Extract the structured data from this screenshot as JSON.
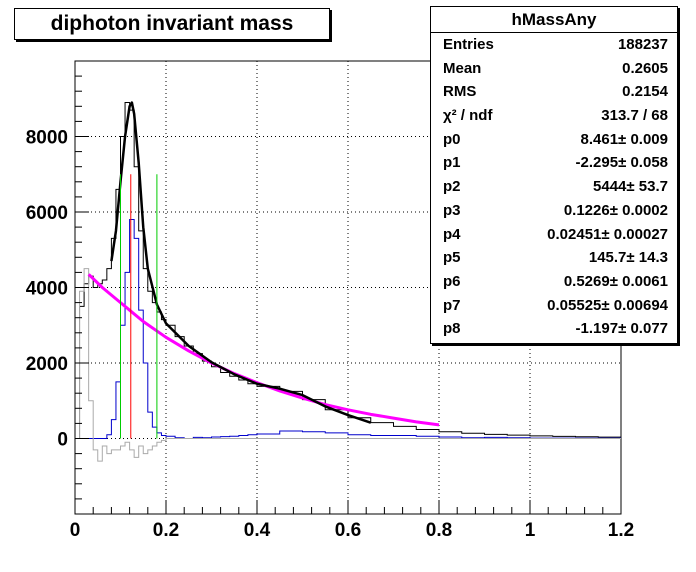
{
  "title": "diphoton invariant mass",
  "stats": {
    "name": "hMassAny",
    "rows": [
      {
        "label": "Entries",
        "value": "188237"
      },
      {
        "label": "Mean",
        "value": "0.2605"
      },
      {
        "label": "RMS",
        "value": "0.2154"
      },
      {
        "label": "χ² / ndf",
        "value": "313.7 / 68"
      },
      {
        "label": "p0",
        "value": "8.461± 0.009"
      },
      {
        "label": "p1",
        "value": "-2.295± 0.058"
      },
      {
        "label": "p2",
        "value": "5444± 53.7"
      },
      {
        "label": "p3",
        "value": "0.1226± 0.0002"
      },
      {
        "label": "p4",
        "value": "0.02451± 0.00027"
      },
      {
        "label": "p5",
        "value": "145.7± 14.3"
      },
      {
        "label": "p6",
        "value": "0.5269± 0.0061"
      },
      {
        "label": "p7",
        "value": "0.05525± 0.00694"
      },
      {
        "label": "p8",
        "value": "-1.197± 0.077"
      }
    ]
  },
  "chart_data": {
    "type": "histogram",
    "xlim": [
      0,
      1.2
    ],
    "ylim": [
      -2000,
      10000
    ],
    "xticks": [
      "0",
      "0.2",
      "0.4",
      "0.6",
      "0.8",
      "1",
      "1.2"
    ],
    "yticks": [
      "0",
      "2000",
      "4000",
      "6000",
      "8000"
    ],
    "grid": true,
    "x": [
      0.0,
      0.01,
      0.02,
      0.03,
      0.04,
      0.05,
      0.06,
      0.07,
      0.08,
      0.09,
      0.1,
      0.11,
      0.12,
      0.13,
      0.14,
      0.15,
      0.16,
      0.17,
      0.18,
      0.19,
      0.2,
      0.22,
      0.24,
      0.26,
      0.28,
      0.3,
      0.32,
      0.34,
      0.36,
      0.38,
      0.4,
      0.45,
      0.5,
      0.55,
      0.6,
      0.65,
      0.7,
      0.75,
      0.8,
      0.85,
      0.9,
      0.95,
      1.0,
      1.05,
      1.1,
      1.15,
      1.2
    ],
    "series": [
      {
        "color": "#000000",
        "style": "hist",
        "values": [
          0,
          3500,
          4100,
          4300,
          4000,
          4100,
          4200,
          4500,
          5300,
          6600,
          8000,
          8900,
          8700,
          7200,
          5500,
          4500,
          3900,
          3600,
          3350,
          3150,
          3000,
          2700,
          2450,
          2250,
          2050,
          1900,
          1750,
          1650,
          1550,
          1450,
          1380,
          1250,
          1030,
          760,
          550,
          420,
          320,
          240,
          180,
          140,
          110,
          90,
          70,
          55,
          45,
          35,
          25
        ]
      },
      {
        "color": "#0000cc",
        "style": "hist",
        "values": [
          0,
          0,
          0,
          0,
          0,
          0,
          0,
          100,
          500,
          1500,
          3000,
          4400,
          5800,
          5300,
          3400,
          2000,
          700,
          300,
          150,
          80,
          60,
          20,
          0,
          30,
          20,
          40,
          50,
          60,
          80,
          100,
          120,
          200,
          180,
          150,
          100,
          80,
          80,
          60,
          40,
          20,
          30,
          20,
          10,
          10,
          10,
          10,
          10
        ]
      },
      {
        "color": "#aaaaaa",
        "style": "hist",
        "values": [
          0,
          3900,
          4500,
          1000,
          -300,
          -600,
          -200,
          -400,
          -300,
          -300,
          -200,
          -100,
          -300,
          -500,
          -200,
          -400,
          -300,
          -200,
          -100,
          -50,
          0,
          0,
          0,
          0,
          0,
          0,
          0,
          0,
          0,
          0,
          0,
          0,
          0,
          0,
          0,
          0,
          0,
          0,
          0,
          0,
          0,
          0,
          0,
          0,
          0,
          0,
          0
        ]
      },
      {
        "color": "#ff00ff",
        "style": "fit",
        "x": [
          0.03,
          0.06,
          0.1,
          0.15,
          0.2,
          0.25,
          0.3,
          0.35,
          0.4,
          0.45,
          0.5,
          0.55,
          0.6,
          0.65,
          0.7,
          0.75,
          0.8
        ],
        "values": [
          4350,
          4000,
          3600,
          3100,
          2680,
          2320,
          2000,
          1720,
          1480,
          1260,
          1070,
          900,
          760,
          640,
          540,
          440,
          360
        ]
      },
      {
        "color": "#000000",
        "style": "fit",
        "x": [
          0.08,
          0.09,
          0.1,
          0.11,
          0.12,
          0.125,
          0.13,
          0.14,
          0.15,
          0.16,
          0.18,
          0.2,
          0.25,
          0.3,
          0.35,
          0.4,
          0.45,
          0.5,
          0.55,
          0.6,
          0.65
        ],
        "values": [
          4700,
          5500,
          6800,
          8000,
          8800,
          8900,
          8600,
          7300,
          5600,
          4500,
          3550,
          3050,
          2450,
          2020,
          1700,
          1450,
          1320,
          1150,
          850,
          620,
          420
        ]
      }
    ],
    "vlines": [
      {
        "color": "#00cc00",
        "x": 0.1
      },
      {
        "color": "#ff0000",
        "x": 0.1226
      },
      {
        "color": "#00cc00",
        "x": 0.18
      }
    ]
  }
}
